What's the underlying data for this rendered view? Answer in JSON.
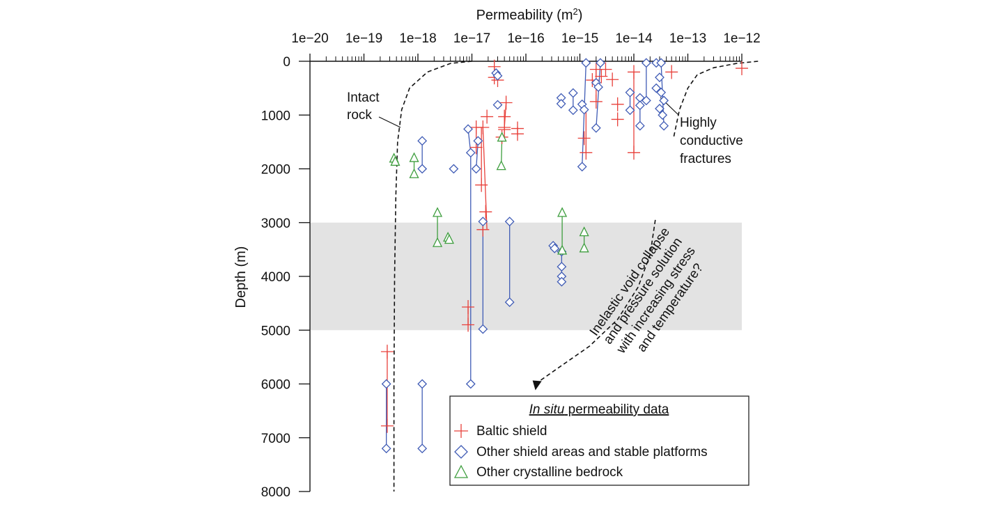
{
  "chart_data": {
    "type": "scatter",
    "xlabel": "Permeability (m",
    "xlabel_sup": "2",
    "xlabel_close": ")",
    "ylabel": "Depth (m)",
    "x_scale": "log",
    "x_axis_position": "top",
    "y_inverted": true,
    "xlim": [
      1e-20,
      1e-12
    ],
    "ylim": [
      0,
      8000
    ],
    "x_tick_labels": [
      "1e−20",
      "1e−19",
      "1e−18",
      "1e−17",
      "1e−16",
      "1e−15",
      "1e−14",
      "1e−13",
      "1e−12"
    ],
    "x_tick_exponents": [
      -20,
      -19,
      -18,
      -17,
      -16,
      -15,
      -14,
      -13,
      -12
    ],
    "y_ticks": [
      0,
      1000,
      2000,
      3000,
      4000,
      5000,
      6000,
      7000,
      8000
    ],
    "shaded_band": [
      3000,
      5000
    ],
    "legend": {
      "title_italic": "In situ",
      "title_rest": " permeability data",
      "placement": "bottom-right",
      "entries": [
        {
          "label": "Baltic shield",
          "marker": "plus",
          "color": "#e8403a"
        },
        {
          "label": "Other shield areas and stable platforms",
          "marker": "diamond",
          "color": "#3f5bb5"
        },
        {
          "label": "Other crystalline bedrock",
          "marker": "triangle",
          "color": "#3e9e3e"
        }
      ]
    },
    "annotations": {
      "intact_rock": [
        "Intact",
        "rock"
      ],
      "highly_conductive": [
        "Highly",
        "conductive",
        "fractures"
      ],
      "inelastic": [
        "Inelastic void collapse",
        "and pressure solution",
        "with increasing stress",
        "and temperature?"
      ]
    },
    "intact_rock_curve": [
      [
        1e-17,
        0
      ],
      [
        4e-18,
        40
      ],
      [
        1.5e-18,
        200
      ],
      [
        7e-19,
        500
      ],
      [
        5e-19,
        900
      ],
      [
        4.2e-19,
        1500
      ],
      [
        3.9e-19,
        2500
      ],
      [
        3.7e-19,
        4000
      ],
      [
        3.6e-19,
        6000
      ],
      [
        3.6e-19,
        8000
      ]
    ],
    "fracture_curve": [
      [
        2e-12,
        0
      ],
      [
        8e-13,
        40
      ],
      [
        3e-13,
        120
      ],
      [
        1.5e-13,
        250
      ],
      [
        1e-13,
        500
      ],
      [
        7e-14,
        900
      ],
      [
        5.5e-14,
        1400
      ]
    ],
    "trend_arrow": [
      [
        2.5e-14,
        2950
      ],
      [
        2e-14,
        3600
      ],
      [
        1.2e-14,
        4200
      ],
      [
        5e-15,
        4800
      ],
      [
        1.5e-15,
        5300
      ],
      [
        4e-16,
        5700
      ],
      [
        1.5e-16,
        6000
      ]
    ],
    "series": [
      {
        "name": "Baltic shield",
        "marker": "plus",
        "color": "#e8403a",
        "points": [
          [
            2.6e-17,
            100
          ],
          [
            2.6e-17,
            300
          ],
          [
            3e-17,
            350
          ],
          [
            4.3e-17,
            770
          ],
          [
            4e-17,
            1030
          ],
          [
            4e-17,
            1230
          ],
          [
            4e-17,
            1270
          ],
          [
            3.6e-17,
            1410
          ],
          [
            7e-17,
            1250
          ],
          [
            7e-17,
            1350
          ],
          [
            1.2e-17,
            1230
          ],
          [
            1.2e-17,
            1600
          ],
          [
            1.6e-17,
            1230
          ],
          [
            1.9e-17,
            1030
          ],
          [
            1.5e-17,
            2300
          ],
          [
            1.8e-17,
            2800
          ],
          [
            1.6e-17,
            3130
          ],
          [
            8.5e-18,
            4570
          ],
          [
            8.5e-18,
            4900
          ],
          [
            2.7e-19,
            5400
          ],
          [
            2.7e-19,
            6780
          ],
          [
            2e-15,
            150
          ],
          [
            1.7e-15,
            350
          ],
          [
            2.5e-15,
            280
          ],
          [
            3e-15,
            150
          ],
          [
            2e-15,
            750
          ],
          [
            5e-15,
            800
          ],
          [
            5e-15,
            1080
          ],
          [
            4e-15,
            340
          ],
          [
            1.2e-15,
            1430
          ],
          [
            1.3e-15,
            1700
          ],
          [
            1e-14,
            200
          ],
          [
            1e-14,
            1700
          ],
          [
            5e-14,
            200
          ],
          [
            1e-12,
            130
          ]
        ],
        "segments": [
          [
            2.6e-17,
            100,
            2.6e-17,
            300
          ],
          [
            4.3e-17,
            770,
            4e-17,
            1230
          ],
          [
            1.2e-17,
            1230,
            1.2e-17,
            1600
          ],
          [
            1.6e-17,
            1230,
            1.9e-17,
            3130
          ],
          [
            1.5e-17,
            1230,
            1.5e-17,
            2300
          ],
          [
            8.5e-18,
            4570,
            8.5e-18,
            4900
          ],
          [
            2.7e-19,
            5400,
            2.7e-19,
            6780
          ],
          [
            1.3e-15,
            900,
            1.3e-15,
            1700
          ],
          [
            1e-14,
            200,
            1e-14,
            1700
          ],
          [
            2e-15,
            150,
            2e-15,
            750
          ]
        ]
      },
      {
        "name": "Other shield areas and stable platforms",
        "marker": "diamond",
        "color": "#3f5bb5",
        "points": [
          [
            2.8e-17,
            220
          ],
          [
            3e-17,
            270
          ],
          [
            3e-17,
            810
          ],
          [
            4.5e-16,
            680
          ],
          [
            4.5e-16,
            790
          ],
          [
            7.5e-16,
            590
          ],
          [
            7.5e-16,
            910
          ],
          [
            1.3e-15,
            30
          ],
          [
            1.1e-15,
            800
          ],
          [
            1.2e-15,
            900
          ],
          [
            1.1e-15,
            1960
          ],
          [
            2.4e-15,
            30
          ],
          [
            2e-15,
            400
          ],
          [
            2.2e-15,
            480
          ],
          [
            2e-15,
            1240
          ],
          [
            1.7e-14,
            30
          ],
          [
            1.7e-14,
            730
          ],
          [
            1.3e-14,
            680
          ],
          [
            1.3e-14,
            820
          ],
          [
            1.3e-14,
            1200
          ],
          [
            8.5e-15,
            580
          ],
          [
            8.5e-15,
            910
          ],
          [
            2.6e-14,
            30
          ],
          [
            3.2e-14,
            30
          ],
          [
            3e-14,
            300
          ],
          [
            2.6e-14,
            500
          ],
          [
            3.2e-14,
            580
          ],
          [
            3.6e-14,
            730
          ],
          [
            3e-14,
            880
          ],
          [
            3.4e-14,
            1000
          ],
          [
            3.6e-14,
            1200
          ],
          [
            8.5e-18,
            1260
          ],
          [
            1.3e-17,
            1480
          ],
          [
            1.2e-17,
            2000
          ],
          [
            4.6e-18,
            2000
          ],
          [
            1.2e-18,
            1480
          ],
          [
            1.2e-18,
            2000
          ],
          [
            9.5e-18,
            1700
          ],
          [
            9.5e-18,
            6000
          ],
          [
            1.6e-17,
            2980
          ],
          [
            1.6e-17,
            4980
          ],
          [
            5e-17,
            2980
          ],
          [
            5e-17,
            4480
          ],
          [
            3.2e-16,
            3430
          ],
          [
            3.4e-16,
            3480
          ],
          [
            4.6e-16,
            3540
          ],
          [
            4.6e-16,
            3820
          ],
          [
            4.6e-16,
            4000
          ],
          [
            4.6e-16,
            4100
          ],
          [
            2.6e-19,
            6000
          ],
          [
            2.6e-19,
            7200
          ],
          [
            1.2e-18,
            6000
          ],
          [
            1.2e-18,
            7200
          ]
        ],
        "segments": [
          [
            4.5e-16,
            680,
            4.5e-16,
            790
          ],
          [
            7.5e-16,
            590,
            7.5e-16,
            910
          ],
          [
            1.3e-15,
            30,
            1.1e-15,
            1960
          ],
          [
            2.4e-15,
            30,
            2e-15,
            1240
          ],
          [
            1.7e-14,
            30,
            1.7e-14,
            730
          ],
          [
            1.3e-14,
            680,
            1.3e-14,
            1200
          ],
          [
            8.5e-15,
            580,
            8.5e-15,
            910
          ],
          [
            3.2e-14,
            30,
            3.6e-14,
            1200
          ],
          [
            1.2e-18,
            1480,
            1.2e-18,
            2000
          ],
          [
            1.3e-17,
            1480,
            1.2e-17,
            2000
          ],
          [
            9.5e-18,
            1700,
            9.5e-18,
            6000
          ],
          [
            1.6e-17,
            2980,
            1.6e-17,
            4980
          ],
          [
            5e-17,
            2980,
            5e-17,
            4480
          ],
          [
            2.6e-19,
            6000,
            2.6e-19,
            7200
          ],
          [
            1.2e-18,
            6000,
            1.2e-18,
            7200
          ],
          [
            8.5e-18,
            1260,
            9.5e-18,
            1700
          ],
          [
            4.6e-16,
            3540,
            4.6e-16,
            4100
          ]
        ]
      },
      {
        "name": "Other crystalline bedrock",
        "marker": "triangle",
        "color": "#3e9e3e",
        "points": [
          [
            3.6e-19,
            1810
          ],
          [
            3.8e-19,
            1870
          ],
          [
            8.5e-19,
            1800
          ],
          [
            8.5e-19,
            2100
          ],
          [
            3.6e-17,
            1420
          ],
          [
            3.5e-17,
            1950
          ],
          [
            2.3e-18,
            2820
          ],
          [
            2.3e-18,
            3380
          ],
          [
            3.6e-18,
            3280
          ],
          [
            3.8e-18,
            3320
          ],
          [
            4.7e-16,
            2820
          ],
          [
            4.7e-16,
            3520
          ],
          [
            1.2e-15,
            3180
          ],
          [
            1.2e-15,
            3480
          ]
        ],
        "segments": [
          [
            8.5e-19,
            1800,
            8.5e-19,
            2100
          ],
          [
            3.6e-17,
            1420,
            3.5e-17,
            1950
          ],
          [
            2.3e-18,
            2820,
            2.3e-18,
            3380
          ],
          [
            4.7e-16,
            2820,
            4.7e-16,
            3520
          ],
          [
            1.2e-15,
            3180,
            1.2e-15,
            3480
          ]
        ]
      }
    ]
  }
}
